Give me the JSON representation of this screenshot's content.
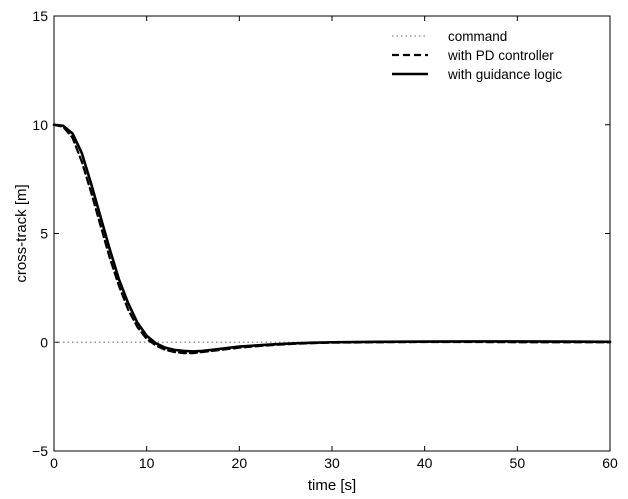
{
  "chart_data": {
    "type": "line",
    "xlabel": "time [s]",
    "ylabel": "cross-track [m]",
    "xlim": [
      0,
      60
    ],
    "ylim": [
      -5,
      15
    ],
    "xticks": [
      0,
      10,
      20,
      30,
      40,
      50,
      60
    ],
    "yticks": [
      -5,
      0,
      5,
      10,
      15
    ],
    "grid": false,
    "legend_position": "top-right",
    "series": [
      {
        "name": "command",
        "style": "dotted",
        "color": "#999999",
        "x": [
          0,
          60
        ],
        "y": [
          0,
          0
        ]
      },
      {
        "name": "with PD controller",
        "style": "dashed",
        "color": "#000000",
        "x": [
          0,
          1,
          2,
          3,
          4,
          5,
          6,
          7,
          8,
          9,
          10,
          11,
          12,
          13,
          14,
          15,
          16,
          17,
          18,
          20,
          22,
          24,
          26,
          28,
          30,
          35,
          40,
          45,
          50,
          55,
          60
        ],
        "y": [
          10.0,
          9.9,
          9.4,
          8.3,
          6.9,
          5.4,
          3.9,
          2.6,
          1.5,
          0.7,
          0.15,
          -0.15,
          -0.35,
          -0.45,
          -0.5,
          -0.5,
          -0.45,
          -0.4,
          -0.35,
          -0.25,
          -0.18,
          -0.12,
          -0.07,
          -0.04,
          -0.02,
          0.0,
          0.01,
          0.01,
          0.0,
          0.0,
          0.0
        ]
      },
      {
        "name": "with guidance logic",
        "style": "solid",
        "color": "#000000",
        "x": [
          0,
          1,
          2,
          3,
          4,
          5,
          6,
          7,
          8,
          9,
          10,
          11,
          12,
          13,
          14,
          15,
          16,
          17,
          18,
          20,
          22,
          24,
          26,
          28,
          30,
          35,
          40,
          45,
          50,
          55,
          60
        ],
        "y": [
          10.0,
          9.95,
          9.6,
          8.7,
          7.3,
          5.8,
          4.3,
          2.9,
          1.8,
          0.9,
          0.3,
          -0.05,
          -0.25,
          -0.35,
          -0.4,
          -0.42,
          -0.4,
          -0.35,
          -0.3,
          -0.2,
          -0.14,
          -0.09,
          -0.05,
          -0.02,
          0.0,
          0.02,
          0.03,
          0.04,
          0.04,
          0.03,
          0.02
        ]
      }
    ]
  }
}
